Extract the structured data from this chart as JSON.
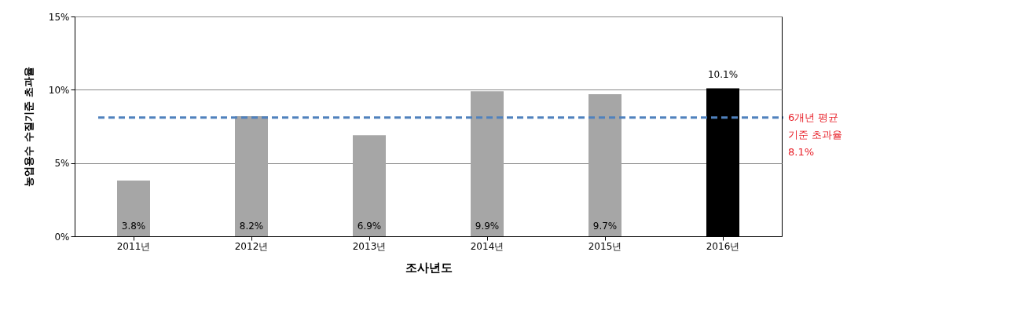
{
  "chart_data": {
    "type": "bar",
    "xlabel": "조사년도",
    "ylabel": "농업용수 수질기준 초과율",
    "categories": [
      "2011년",
      "2012년",
      "2013년",
      "2014년",
      "2015년",
      "2016년"
    ],
    "values": [
      3.8,
      8.2,
      6.9,
      9.9,
      9.7,
      10.1
    ],
    "colors": [
      "#a6a6a6",
      "#a6a6a6",
      "#a6a6a6",
      "#a6a6a6",
      "#a6a6a6",
      "#000000"
    ],
    "value_labels": [
      "3.8%",
      "8.2%",
      "6.9%",
      "9.9%",
      "9.7%",
      "10.1%"
    ],
    "ylim": [
      0,
      15
    ],
    "yticks": [
      {
        "value": 0,
        "label": "0%"
      },
      {
        "value": 5,
        "label": "5%"
      },
      {
        "value": 10,
        "label": "10%"
      },
      {
        "value": 15,
        "label": "15%"
      }
    ],
    "grid": "y",
    "ref_lines": [
      {
        "axis": "y",
        "value": 8.1,
        "label": "6개년 평균\n기준 초과율\n8.1%",
        "color": "#4f81bd",
        "line_style": "dashed"
      }
    ]
  }
}
